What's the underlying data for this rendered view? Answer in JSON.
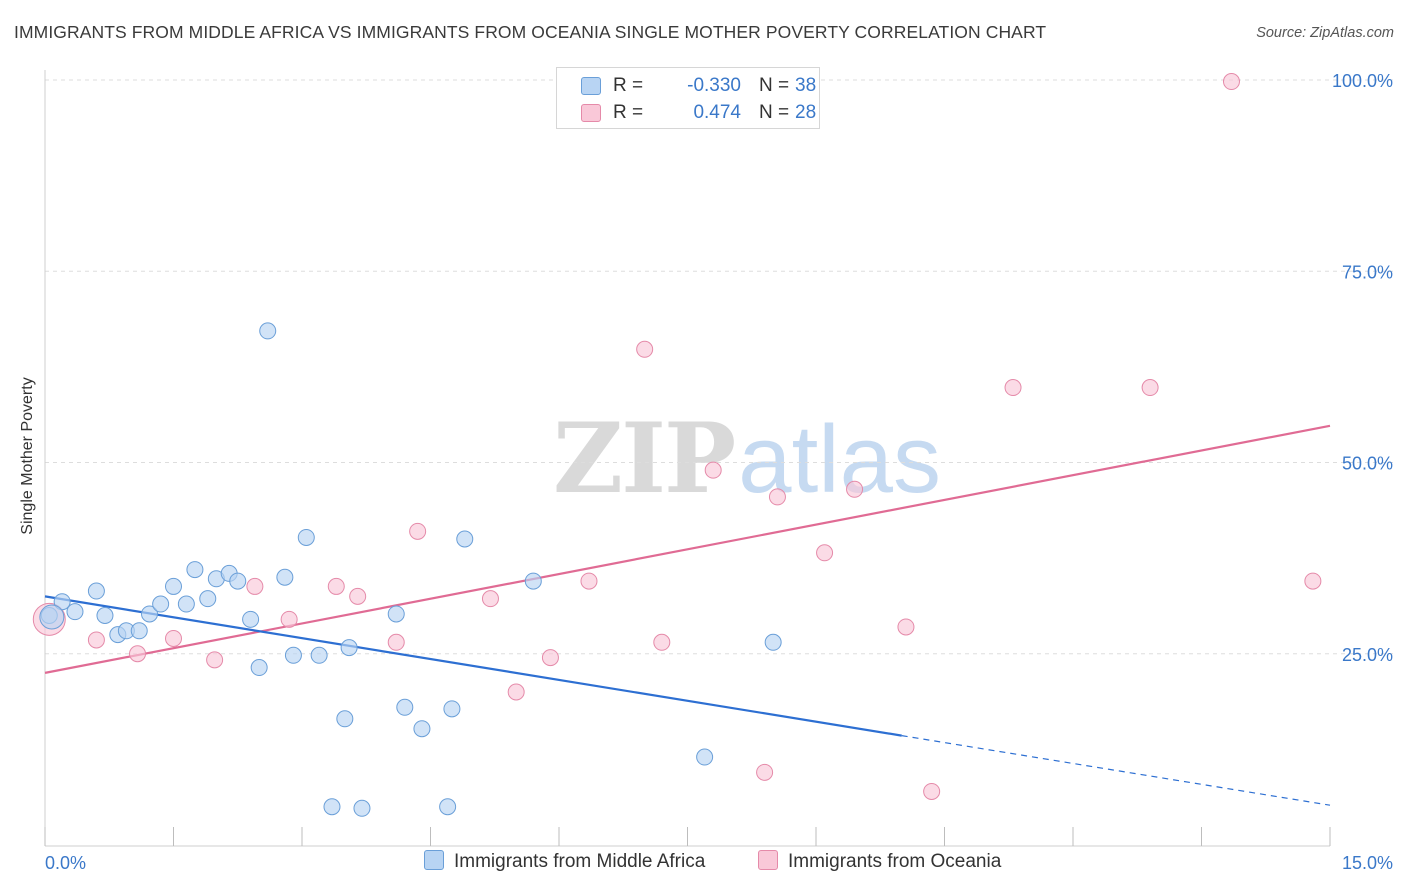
{
  "header": {
    "title": "IMMIGRANTS FROM MIDDLE AFRICA VS IMMIGRANTS FROM OCEANIA SINGLE MOTHER POVERTY CORRELATION CHART",
    "source": "Source: ZipAtlas.com"
  },
  "watermark": {
    "part1": "ZIP",
    "part2": "atlas"
  },
  "legend": {
    "r_label": "R =",
    "n_label": "N =",
    "series1": {
      "r": "-0.330",
      "n": "38",
      "name": "Immigrants from Middle Africa"
    },
    "series2": {
      "r": "0.474",
      "n": "28",
      "name": "Immigrants from Oceania"
    }
  },
  "colors": {
    "blue_fill": "#b8d4f3",
    "blue_stroke": "#6a9fd8",
    "blue_line": "#2d6fd2",
    "pink_fill": "#f9c8d8",
    "pink_stroke": "#e58aa9",
    "pink_line": "#e06b94",
    "axis_text": "#3a78c9",
    "grid": "#dddddd"
  },
  "chart_data": {
    "type": "scatter",
    "title": "IMMIGRANTS FROM MIDDLE AFRICA VS IMMIGRANTS FROM OCEANIA SINGLE MOTHER POVERTY CORRELATION CHART",
    "xlabel": "",
    "ylabel": "Single Mother Poverty",
    "xlim": [
      0,
      15
    ],
    "ylim": [
      0,
      102
    ],
    "x_tick_labels": [
      "0.0%",
      "15.0%"
    ],
    "y_tick_values": [
      25,
      50,
      75,
      100
    ],
    "y_tick_labels": [
      "25.0%",
      "50.0%",
      "75.0%",
      "100.0%"
    ],
    "grid": "horizontal dashed",
    "legend_position": "top-center",
    "series": [
      {
        "name": "Immigrants from Middle Africa",
        "r": -0.33,
        "n": 38,
        "points": [
          [
            0.05,
            30.0
          ],
          [
            0.2,
            31.8
          ],
          [
            0.35,
            30.5
          ],
          [
            0.6,
            33.2
          ],
          [
            0.7,
            30.0
          ],
          [
            0.85,
            27.5
          ],
          [
            0.95,
            28.0
          ],
          [
            1.1,
            28.0
          ],
          [
            1.22,
            30.2
          ],
          [
            1.35,
            31.5
          ],
          [
            1.5,
            33.8
          ],
          [
            1.65,
            31.5
          ],
          [
            1.75,
            36.0
          ],
          [
            1.9,
            32.2
          ],
          [
            2.0,
            34.8
          ],
          [
            2.15,
            35.5
          ],
          [
            2.25,
            34.5
          ],
          [
            2.4,
            29.5
          ],
          [
            2.5,
            23.2
          ],
          [
            2.6,
            67.2
          ],
          [
            2.8,
            35.0
          ],
          [
            2.9,
            24.8
          ],
          [
            3.05,
            40.2
          ],
          [
            3.2,
            24.8
          ],
          [
            3.35,
            5.0
          ],
          [
            3.5,
            16.5
          ],
          [
            3.55,
            25.8
          ],
          [
            3.7,
            4.8
          ],
          [
            4.1,
            30.2
          ],
          [
            4.2,
            18.0
          ],
          [
            4.4,
            15.2
          ],
          [
            4.7,
            5.0
          ],
          [
            4.75,
            17.8
          ],
          [
            4.9,
            40.0
          ],
          [
            5.7,
            34.5
          ],
          [
            7.7,
            11.5
          ],
          [
            8.5,
            26.5
          ],
          [
            0.08,
            29.8
          ]
        ],
        "trend": {
          "x": [
            0,
            10.0
          ],
          "y": [
            32.5,
            14.3
          ],
          "dashed_extension": {
            "x": [
              10.0,
              15.0
            ],
            "y": [
              14.3,
              5.2
            ]
          }
        }
      },
      {
        "name": "Immigrants from Oceania",
        "r": 0.474,
        "n": 28,
        "points": [
          [
            0.05,
            29.5
          ],
          [
            0.6,
            26.8
          ],
          [
            1.08,
            25.0
          ],
          [
            1.5,
            27.0
          ],
          [
            1.98,
            24.2
          ],
          [
            2.45,
            33.8
          ],
          [
            2.85,
            29.5
          ],
          [
            3.4,
            33.8
          ],
          [
            3.65,
            32.5
          ],
          [
            4.1,
            26.5
          ],
          [
            4.35,
            41.0
          ],
          [
            5.2,
            32.2
          ],
          [
            5.5,
            20.0
          ],
          [
            5.9,
            24.5
          ],
          [
            6.35,
            34.5
          ],
          [
            7.0,
            64.8
          ],
          [
            7.2,
            26.5
          ],
          [
            7.8,
            49.0
          ],
          [
            8.4,
            9.5
          ],
          [
            8.55,
            45.5
          ],
          [
            9.1,
            38.2
          ],
          [
            9.45,
            46.5
          ],
          [
            10.05,
            28.5
          ],
          [
            10.35,
            7.0
          ],
          [
            11.3,
            59.8
          ],
          [
            12.9,
            59.8
          ],
          [
            13.85,
            99.8
          ],
          [
            14.8,
            34.5
          ]
        ],
        "trend": {
          "x": [
            0,
            15.0
          ],
          "y": [
            22.5,
            54.8
          ]
        }
      }
    ]
  }
}
